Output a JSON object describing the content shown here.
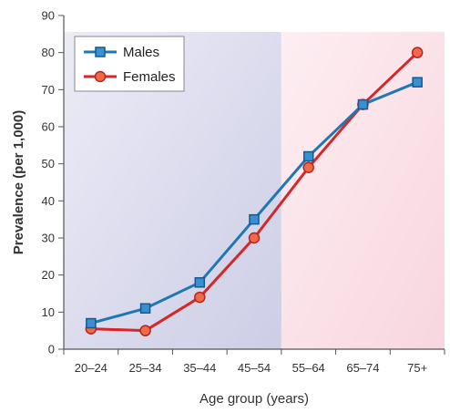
{
  "chart_data": {
    "type": "line",
    "categories": [
      "20–24",
      "25–34",
      "35–44",
      "45–54",
      "55–64",
      "65–74",
      "75+"
    ],
    "series": [
      {
        "name": "Males",
        "values": [
          7,
          11,
          18,
          35,
          52,
          66,
          72
        ],
        "color": "#1f77b4",
        "marker": "square"
      },
      {
        "name": "Females",
        "values": [
          5.5,
          5,
          14,
          30,
          49,
          66,
          80
        ],
        "color": "#d62728",
        "marker": "circle"
      }
    ],
    "title": "",
    "xlabel": "Age group (years)",
    "ylabel": "Prevalence (per 1,000)",
    "ylim": [
      0,
      90
    ],
    "yticks": [
      0,
      10,
      20,
      30,
      40,
      50,
      60,
      70,
      80,
      90
    ],
    "grid": false,
    "legend_position": "top-left",
    "background_bands": [
      {
        "categories": [
          "20–24",
          "45–54"
        ],
        "color": "#d9d9ee"
      },
      {
        "categories": [
          "55–64",
          "75+"
        ],
        "color": "#fbe1e8"
      }
    ]
  }
}
